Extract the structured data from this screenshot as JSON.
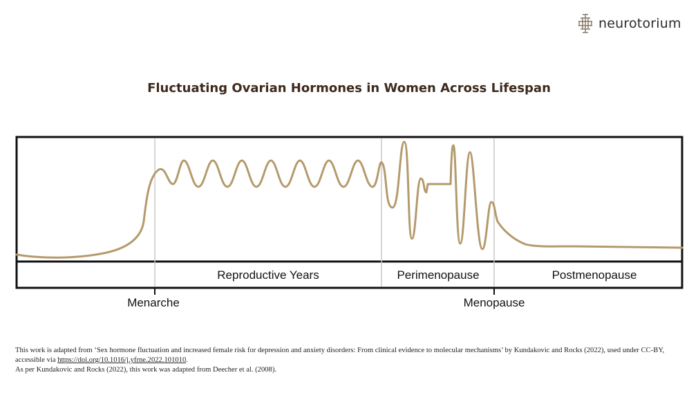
{
  "brand": {
    "name": "neurotorium",
    "logo_icon": "brain-circuit-icon"
  },
  "title": "Fluctuating Ovarian Hormones in Women Across Lifespan",
  "colors": {
    "curve": "#b49a6c",
    "frame": "#111111",
    "divider": "#c8c8c8",
    "title": "#3e2a1c"
  },
  "diagram": {
    "phases": [
      {
        "id": "reproductive",
        "label": "Reproductive Years"
      },
      {
        "id": "perimenopause",
        "label": "Perimenopause"
      },
      {
        "id": "postmenopause",
        "label": "Postmenopause"
      }
    ],
    "milestones": [
      {
        "id": "menarche",
        "label": "Menarche"
      },
      {
        "id": "menopause",
        "label": "Menopause"
      }
    ]
  },
  "footnote": {
    "line1_prefix": "This work is adapted from ‘Sex hormone fluctuation and increased female risk for depression and anxiety disorders: From clinical evidence to molecular mechanisms’ by Kundakovic and Rocks (2022), used under CC-BY, accessible via ",
    "link_text": "https://doi.org/10.1016/j.yfrne.2022.101010",
    "line1_suffix": ".",
    "line2": "As per Kundakovic and Rocks (2022), this work was adapted from Deecher et al. (2008)."
  }
}
